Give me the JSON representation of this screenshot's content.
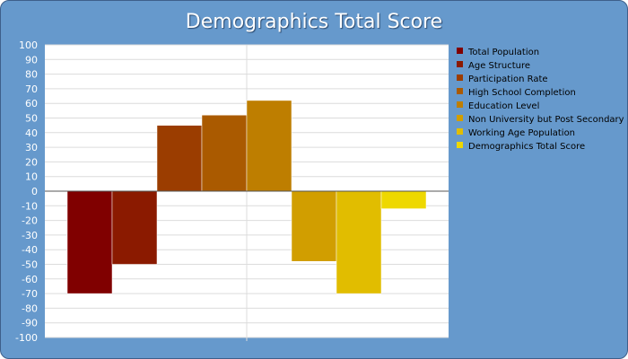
{
  "chart_data": {
    "type": "bar",
    "title": "Demographics Total Score",
    "xlabel": "",
    "ylabel": "",
    "ylim": [
      -100,
      100
    ],
    "ytick_step": 10,
    "grid": true,
    "legend_position": "right",
    "background_color": "#6699cc",
    "plot_background": "#ffffff",
    "series": [
      {
        "name": "Total Population",
        "value": -70,
        "color": "#800000"
      },
      {
        "name": "Age Structure",
        "value": -50,
        "color": "#8b1a00"
      },
      {
        "name": "Participation Rate",
        "value": 45,
        "color": "#9b3d00"
      },
      {
        "name": "High School Completion",
        "value": 52,
        "color": "#aa5a00"
      },
      {
        "name": "Education Level",
        "value": 62,
        "color": "#be7e00"
      },
      {
        "name": "Non University but Post Secondary",
        "value": -48,
        "color": "#d19e00"
      },
      {
        "name": "Working Age Population",
        "value": -70,
        "color": "#e1bd00"
      },
      {
        "name": "Demographics Total Score",
        "value": -12,
        "color": "#eed800"
      }
    ]
  }
}
